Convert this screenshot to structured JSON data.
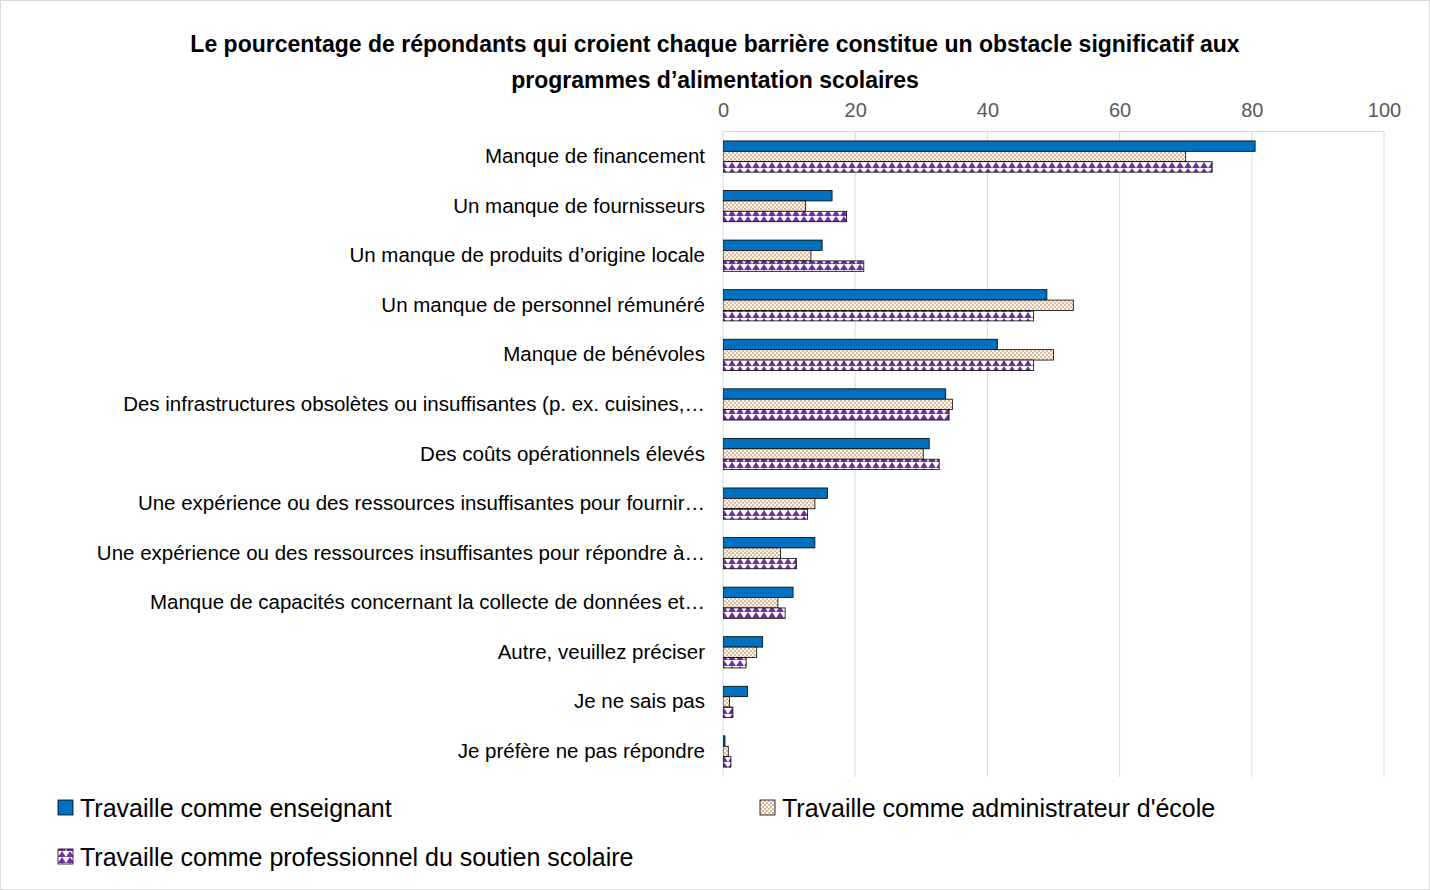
{
  "chart_data": {
    "type": "bar",
    "orientation": "horizontal",
    "title": "Le pourcentage de répondants qui croient chaque barrière constitue un obstacle significatif aux programmes d’alimentation scolaires",
    "categories": [
      "Manque de financement",
      "Un manque de fournisseurs",
      "Un manque de produits d’origine locale",
      "Un manque de personnel rémunéré",
      "Manque de bénévoles",
      "Des infrastructures obsolètes ou insuffisantes (p. ex. cuisines,…",
      "Des coûts opérationnels élevés",
      "Une expérience ou des ressources insuffisantes pour fournir…",
      "Une expérience ou des ressources insuffisantes pour répondre à…",
      "Manque de capacités concernant la collecte de données et…",
      "Autre, veuillez préciser",
      "Je ne sais pas",
      "Je préfère ne pas répondre"
    ],
    "series": [
      {
        "name": "Travaille comme enseignant",
        "color": "#0070c0",
        "values": [
          80.5,
          16.5,
          15,
          49,
          41.5,
          33.7,
          31.2,
          15.8,
          13.9,
          10.6,
          6,
          3.7,
          0.3
        ]
      },
      {
        "name": "Travaille comme administrateur d'école",
        "color": "#c9a07a",
        "values": [
          70,
          12.5,
          13.3,
          53,
          50,
          34.7,
          30.3,
          13.9,
          8.7,
          8.3,
          5.1,
          1,
          0.8
        ]
      },
      {
        "name": "Travaille comme professionnel du soutien scolaire",
        "color": "#7030a0",
        "values": [
          74,
          18.7,
          21.3,
          47,
          47,
          34.2,
          32.7,
          12.8,
          11.1,
          9.4,
          3.5,
          1.5,
          1.2
        ]
      }
    ],
    "xlim": [
      0,
      100
    ],
    "xticks": [
      0,
      20,
      40,
      60,
      80,
      100
    ],
    "grid": true,
    "legend": "bottom"
  }
}
